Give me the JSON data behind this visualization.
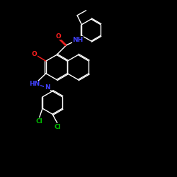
{
  "bg_color": "#000000",
  "bond_color": "#ffffff",
  "atom_colors": {
    "N": "#4040ff",
    "O": "#ff2020",
    "Cl": "#00bb00",
    "C": "#ffffff",
    "H": "#ffffff"
  },
  "figsize": [
    2.5,
    2.5
  ],
  "dpi": 100,
  "xlim": [
    0,
    10
  ],
  "ylim": [
    0,
    10
  ]
}
